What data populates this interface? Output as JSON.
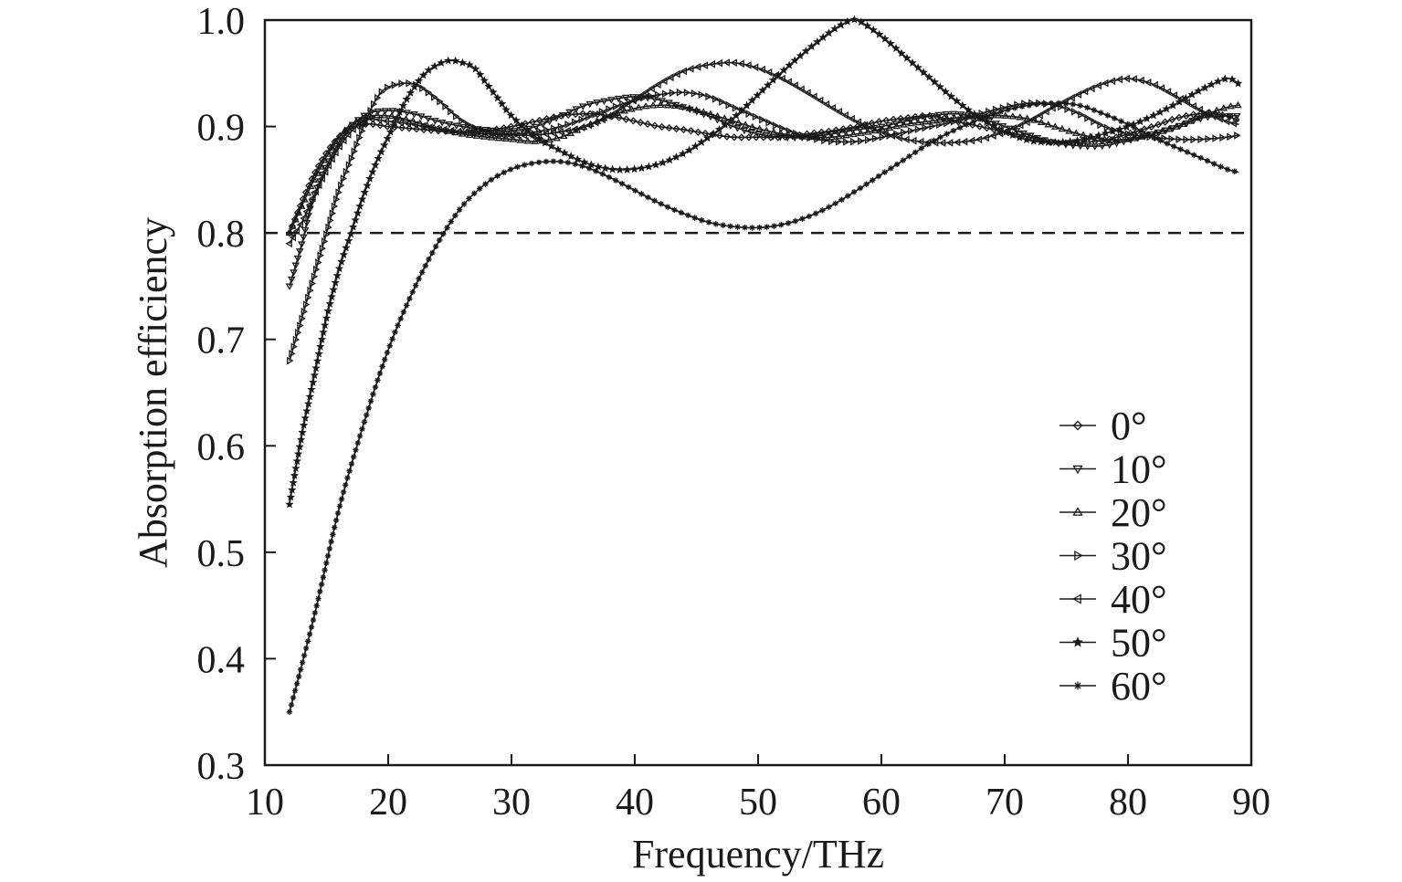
{
  "chart_data": {
    "type": "line",
    "title": "",
    "xlabel": "Frequency/THz",
    "ylabel": "Absorption efficiency",
    "xlim": [
      10,
      90
    ],
    "ylim": [
      0.3,
      1.0
    ],
    "xticks": [
      "10",
      "20",
      "30",
      "40",
      "50",
      "60",
      "70",
      "80",
      "90"
    ],
    "yticks": [
      "0.3",
      "0.4",
      "0.5",
      "0.6",
      "0.7",
      "0.8",
      "0.9",
      "1.0"
    ],
    "reference_line": {
      "y": 0.8,
      "style": "dashed"
    },
    "grid": false,
    "legend_position": "bottom-right",
    "line_color": "#1a1a1a",
    "series": [
      {
        "name": "0°",
        "marker": "diamond",
        "x": [
          12,
          14,
          16,
          18,
          20,
          22,
          24,
          26,
          28,
          30,
          32,
          34,
          36,
          38,
          40,
          42,
          44,
          46,
          48,
          50,
          52,
          54,
          56,
          58,
          60,
          62,
          64,
          66,
          68,
          70,
          72,
          74,
          76,
          78,
          80,
          82,
          84,
          86,
          88,
          89
        ],
        "y": [
          0.8,
          0.855,
          0.89,
          0.902,
          0.9,
          0.898,
          0.896,
          0.895,
          0.896,
          0.9,
          0.905,
          0.91,
          0.912,
          0.91,
          0.905,
          0.9,
          0.897,
          0.893,
          0.89,
          0.89,
          0.89,
          0.893,
          0.896,
          0.9,
          0.905,
          0.908,
          0.91,
          0.905,
          0.9,
          0.895,
          0.89,
          0.885,
          0.885,
          0.887,
          0.893,
          0.9,
          0.908,
          0.912,
          0.91,
          0.905
        ]
      },
      {
        "name": "10°",
        "marker": "triangle-down",
        "x": [
          12,
          13,
          14,
          16,
          18,
          20,
          22,
          24,
          26,
          28,
          30,
          32,
          34,
          36,
          38,
          40,
          42,
          44,
          46,
          48,
          50,
          52,
          54,
          56,
          58,
          60,
          62,
          64,
          66,
          68,
          70,
          72,
          74,
          76,
          78,
          80,
          82,
          84,
          86,
          88,
          89
        ],
        "y": [
          0.75,
          0.79,
          0.835,
          0.885,
          0.91,
          0.915,
          0.912,
          0.905,
          0.9,
          0.897,
          0.896,
          0.9,
          0.91,
          0.92,
          0.925,
          0.928,
          0.925,
          0.918,
          0.91,
          0.9,
          0.893,
          0.89,
          0.89,
          0.893,
          0.897,
          0.9,
          0.905,
          0.91,
          0.912,
          0.908,
          0.9,
          0.892,
          0.885,
          0.882,
          0.882,
          0.887,
          0.893,
          0.9,
          0.908,
          0.91,
          0.91
        ]
      },
      {
        "name": "20°",
        "marker": "triangle-up",
        "x": [
          12,
          14,
          16,
          18,
          20,
          22,
          24,
          26,
          28,
          30,
          32,
          34,
          36,
          38,
          40,
          42,
          44,
          46,
          48,
          50,
          52,
          54,
          56,
          58,
          60,
          62,
          64,
          66,
          68,
          70,
          72,
          74,
          76,
          78,
          80,
          82,
          84,
          86,
          88,
          89
        ],
        "y": [
          0.8,
          0.85,
          0.89,
          0.908,
          0.91,
          0.905,
          0.898,
          0.893,
          0.89,
          0.888,
          0.886,
          0.89,
          0.9,
          0.91,
          0.917,
          0.92,
          0.918,
          0.912,
          0.905,
          0.898,
          0.893,
          0.89,
          0.89,
          0.893,
          0.897,
          0.902,
          0.905,
          0.908,
          0.91,
          0.91,
          0.907,
          0.9,
          0.893,
          0.888,
          0.888,
          0.893,
          0.9,
          0.91,
          0.918,
          0.92
        ]
      },
      {
        "name": "30°",
        "marker": "triangle-right",
        "x": [
          12,
          13,
          14,
          15,
          16,
          17,
          18,
          19,
          20,
          22,
          24,
          26,
          28,
          30,
          32,
          34,
          36,
          38,
          40,
          42,
          44,
          46,
          48,
          50,
          52,
          54,
          56,
          58,
          60,
          62,
          64,
          66,
          68,
          70,
          72,
          74,
          76,
          78,
          80,
          82,
          84,
          86,
          88,
          89
        ],
        "y": [
          0.68,
          0.72,
          0.76,
          0.8,
          0.84,
          0.87,
          0.9,
          0.925,
          0.937,
          0.94,
          0.925,
          0.905,
          0.895,
          0.893,
          0.895,
          0.9,
          0.908,
          0.917,
          0.925,
          0.93,
          0.932,
          0.928,
          0.918,
          0.908,
          0.898,
          0.89,
          0.886,
          0.886,
          0.89,
          0.895,
          0.9,
          0.905,
          0.912,
          0.918,
          0.922,
          0.92,
          0.912,
          0.9,
          0.893,
          0.89,
          0.888,
          0.888,
          0.89,
          0.892
        ]
      },
      {
        "name": "40°",
        "marker": "triangle-left",
        "x": [
          12,
          13,
          14,
          16,
          18,
          20,
          22,
          24,
          26,
          28,
          30,
          32,
          34,
          36,
          38,
          40,
          42,
          44,
          46,
          48,
          50,
          52,
          54,
          56,
          58,
          60,
          62,
          64,
          66,
          68,
          70,
          72,
          74,
          76,
          78,
          80,
          82,
          84,
          86,
          88,
          89
        ],
        "y": [
          0.79,
          0.81,
          0.835,
          0.88,
          0.905,
          0.905,
          0.902,
          0.898,
          0.895,
          0.893,
          0.892,
          0.892,
          0.895,
          0.9,
          0.91,
          0.925,
          0.94,
          0.952,
          0.958,
          0.96,
          0.955,
          0.945,
          0.932,
          0.918,
          0.905,
          0.895,
          0.888,
          0.885,
          0.885,
          0.888,
          0.895,
          0.905,
          0.918,
          0.93,
          0.94,
          0.945,
          0.94,
          0.928,
          0.915,
          0.905,
          0.902
        ]
      },
      {
        "name": "50°",
        "marker": "star",
        "x": [
          12,
          13,
          14,
          15,
          16,
          17,
          18,
          19,
          20,
          21,
          22,
          23,
          24,
          25,
          26,
          27,
          28,
          29,
          30,
          32,
          34,
          36,
          38,
          40,
          42,
          44,
          46,
          48,
          50,
          52,
          54,
          56,
          57,
          58,
          60,
          62,
          64,
          66,
          68,
          70,
          72,
          74,
          76,
          78,
          80,
          82,
          84,
          86,
          88,
          89
        ],
        "y": [
          0.545,
          0.61,
          0.665,
          0.72,
          0.765,
          0.8,
          0.835,
          0.865,
          0.89,
          0.915,
          0.935,
          0.95,
          0.958,
          0.962,
          0.96,
          0.955,
          0.94,
          0.925,
          0.91,
          0.89,
          0.877,
          0.866,
          0.86,
          0.86,
          0.865,
          0.875,
          0.89,
          0.908,
          0.93,
          0.952,
          0.972,
          0.99,
          0.997,
          1.0,
          0.985,
          0.965,
          0.945,
          0.925,
          0.908,
          0.895,
          0.887,
          0.885,
          0.887,
          0.893,
          0.9,
          0.91,
          0.922,
          0.935,
          0.945,
          0.94
        ]
      },
      {
        "name": "60°",
        "marker": "cross",
        "x": [
          12,
          14,
          16,
          18,
          20,
          22,
          24,
          26,
          28,
          30,
          32,
          34,
          36,
          38,
          40,
          42,
          44,
          46,
          48,
          50,
          52,
          54,
          56,
          58,
          60,
          62,
          64,
          66,
          68,
          70,
          72,
          74,
          76,
          78,
          80,
          82,
          84,
          86,
          88,
          89
        ],
        "y": [
          0.35,
          0.44,
          0.54,
          0.62,
          0.69,
          0.745,
          0.79,
          0.825,
          0.847,
          0.86,
          0.866,
          0.867,
          0.862,
          0.852,
          0.84,
          0.828,
          0.818,
          0.81,
          0.806,
          0.805,
          0.808,
          0.815,
          0.826,
          0.84,
          0.855,
          0.87,
          0.885,
          0.897,
          0.907,
          0.915,
          0.92,
          0.922,
          0.92,
          0.912,
          0.902,
          0.89,
          0.88,
          0.87,
          0.86,
          0.857
        ]
      }
    ]
  }
}
